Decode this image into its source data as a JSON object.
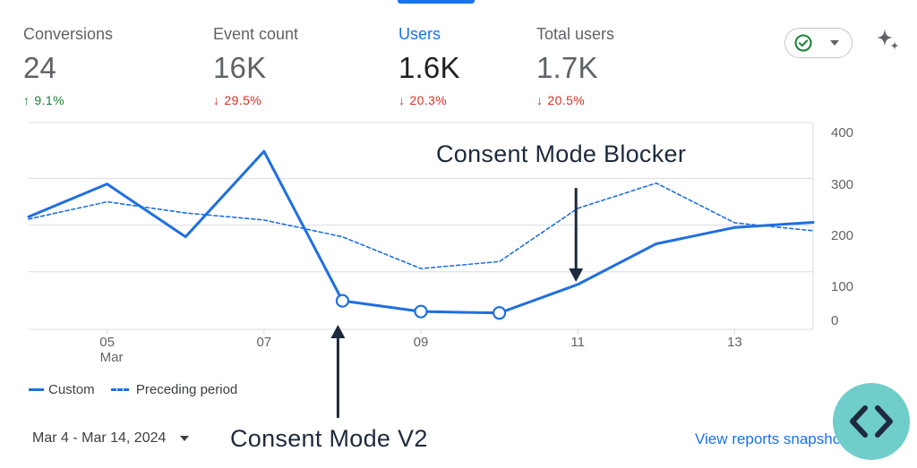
{
  "colors": {
    "accent": "#1a73e8",
    "line": "#1f6fe0",
    "positive": "#188038",
    "negative": "#d93025",
    "annotation": "#1d2a3c",
    "badge": "#6fcdca",
    "grid": "#dadce0"
  },
  "metrics": [
    {
      "label": "Conversions",
      "value": "24",
      "delta": "9.1%",
      "direction": "up"
    },
    {
      "label": "Event count",
      "value": "16K",
      "delta": "29.5%",
      "direction": "down"
    },
    {
      "label": "Users",
      "value": "1.6K",
      "delta": "20.3%",
      "direction": "down",
      "active": true
    },
    {
      "label": "Total users",
      "value": "1.7K",
      "delta": "20.5%",
      "direction": "down"
    }
  ],
  "icons": {
    "status": "check-circle-icon",
    "status_dropdown": "caret-down-icon",
    "insights": "sparkle-icon",
    "nav": "code-brackets-icon"
  },
  "legend": {
    "custom": "Custom",
    "preceding": "Preceding period"
  },
  "footer": {
    "date_range": "Mar 4 - Mar 14, 2024",
    "view_link": "View reports snapshot"
  },
  "annotations": {
    "blocker": "Consent Mode Blocker",
    "v2": "Consent Mode V2"
  },
  "chart_data": {
    "type": "line",
    "x": [
      "04",
      "05",
      "06",
      "07",
      "08",
      "09",
      "10",
      "11",
      "12",
      "13",
      "14"
    ],
    "x_tick_labels": [
      "05",
      "07",
      "09",
      "11",
      "13"
    ],
    "x_sublabel": "Mar",
    "y_ticks": [
      "0",
      "100",
      "200",
      "300",
      "400"
    ],
    "ylim": [
      0,
      400
    ],
    "grid": true,
    "legend_position": "bottom-left",
    "series": [
      {
        "name": "Custom",
        "style": "solid",
        "values": [
          218,
          288,
          175,
          358,
          38,
          15,
          12,
          73,
          160,
          195,
          206
        ],
        "markers": [
          4,
          5,
          6
        ]
      },
      {
        "name": "Preceding period",
        "style": "dashed",
        "values": [
          213,
          250,
          226,
          211,
          175,
          107,
          122,
          236,
          290,
          205,
          188
        ]
      }
    ],
    "annotations": [
      {
        "label": "Consent Mode Blocker",
        "x": "11",
        "direction": "down"
      },
      {
        "label": "Consent Mode V2",
        "x": "08",
        "direction": "up"
      }
    ]
  }
}
